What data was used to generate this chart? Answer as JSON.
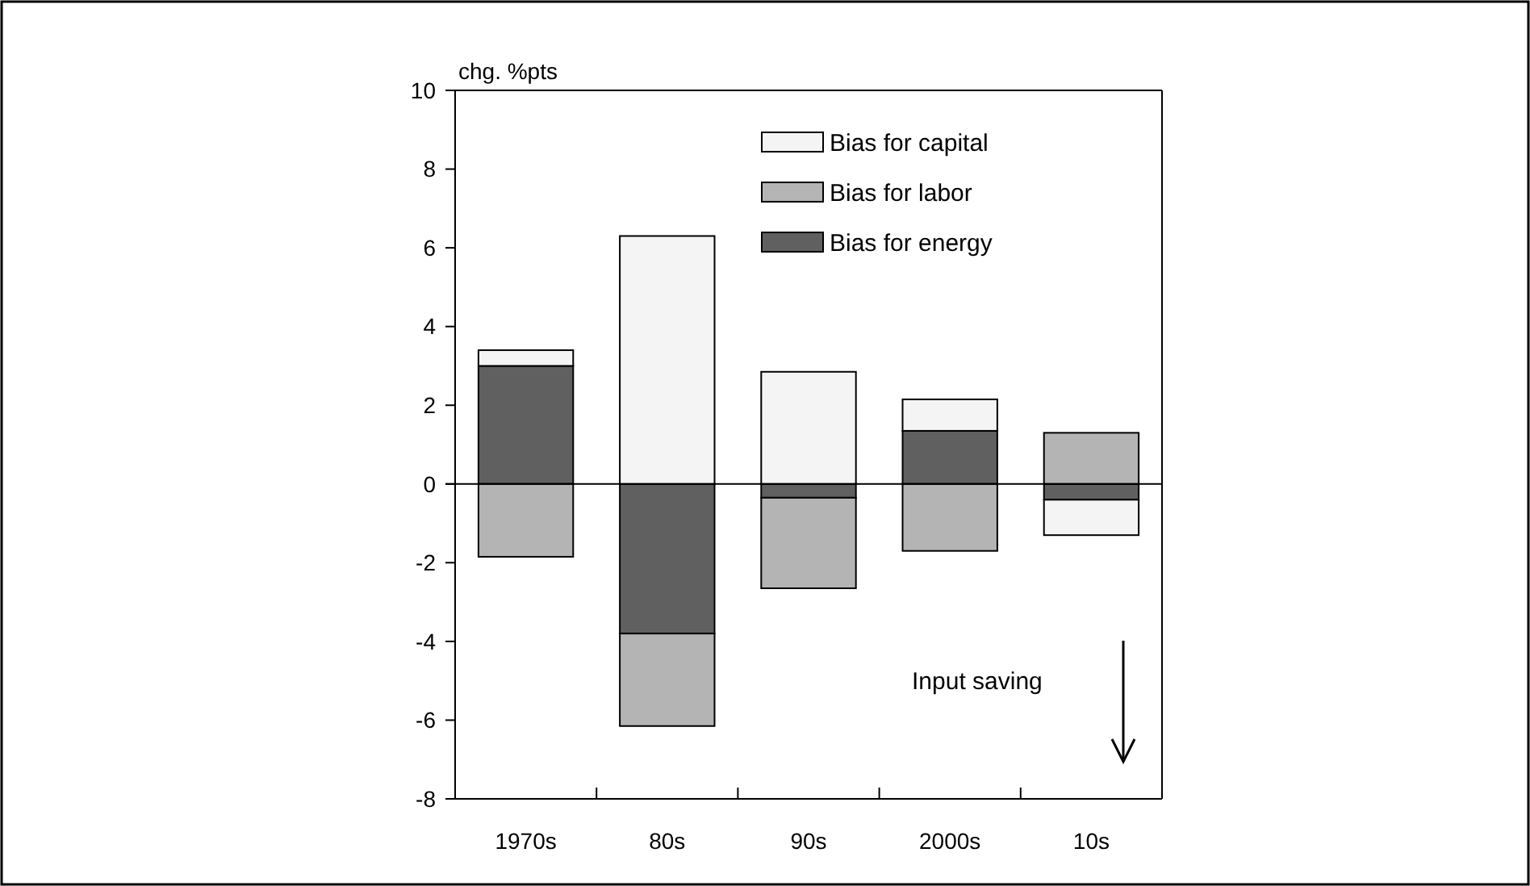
{
  "chart_data": {
    "type": "bar",
    "stacked": true,
    "ylabel": "chg. %pts",
    "categories": [
      "1970s",
      "80s",
      "90s",
      "2000s",
      "10s"
    ],
    "series": [
      {
        "name": "Bias for energy",
        "color": "#606060",
        "values": [
          3.0,
          -3.8,
          -0.35,
          1.35,
          -0.4
        ]
      },
      {
        "name": "Bias for labor",
        "color": "#b4b4b4",
        "values": [
          -1.85,
          -2.35,
          -2.3,
          -1.7,
          1.3
        ]
      },
      {
        "name": "Bias for capital",
        "color": "#f4f4f4",
        "values": [
          0.4,
          6.3,
          2.85,
          0.8,
          -0.9
        ]
      }
    ],
    "ylim": [
      -8,
      10
    ],
    "yticks": [
      -8,
      -6,
      -4,
      -2,
      0,
      2,
      4,
      6,
      8,
      10
    ],
    "legend": "top right",
    "annotations": [
      "Input saving"
    ]
  }
}
